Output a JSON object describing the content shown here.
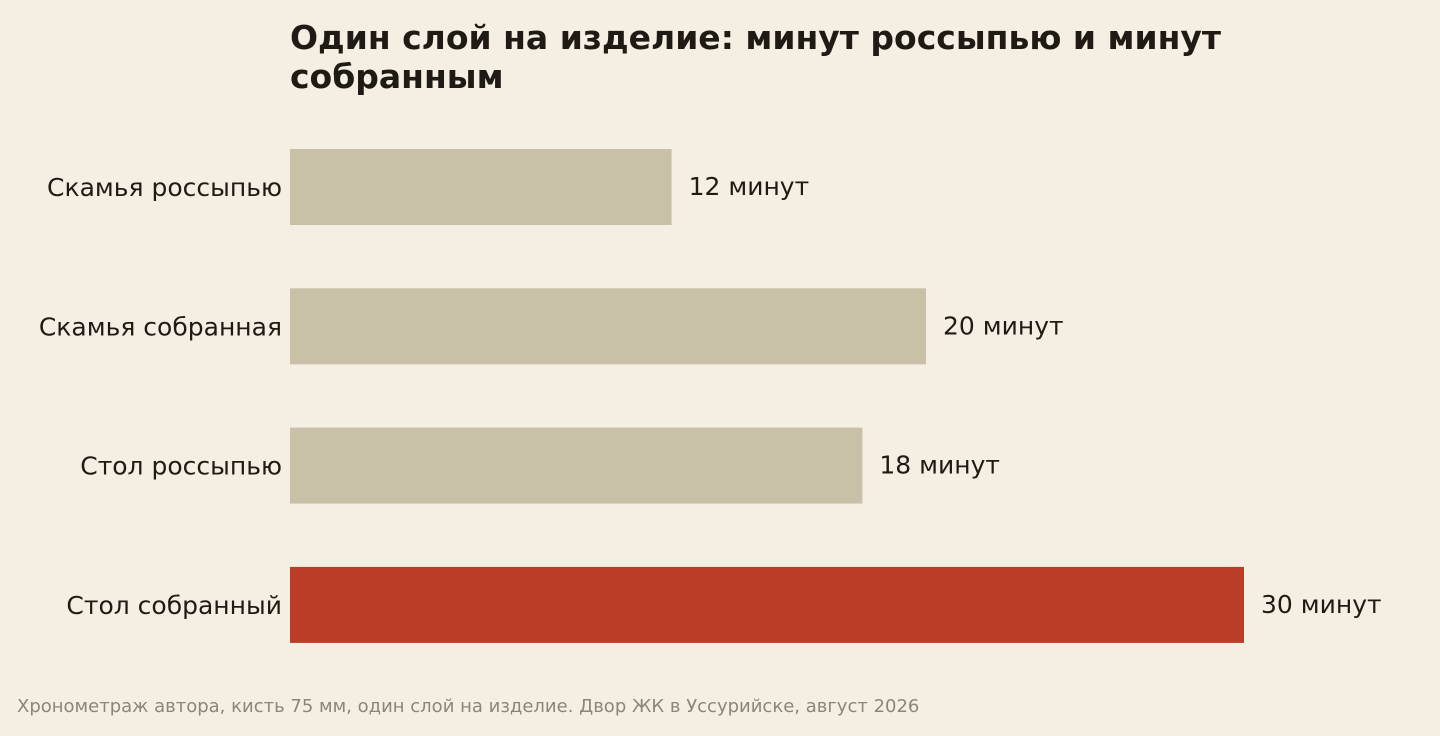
{
  "chart_data": {
    "type": "bar",
    "orientation": "horizontal",
    "title": "Один слой на изделие: минут россыпью и минут собранным",
    "categories": [
      "Скамья россыпью",
      "Скамья собранная",
      "Стол россыпью",
      "Стол собранный"
    ],
    "values": [
      12,
      20,
      18,
      30
    ],
    "value_labels": [
      "12 минут",
      "20 минут",
      "18 минут",
      "30 минут"
    ],
    "xlabel": "",
    "ylabel": "",
    "xlim": [
      0,
      30
    ],
    "grid": false,
    "colors": {
      "default": "#c9c0a8",
      "highlight": "#bc3d27"
    },
    "highlight_index": 3
  },
  "footnote": "Хронометраж автора, кисть 75 мм, один слой на изделие. Двор ЖК в Уссурийске, август 2026"
}
